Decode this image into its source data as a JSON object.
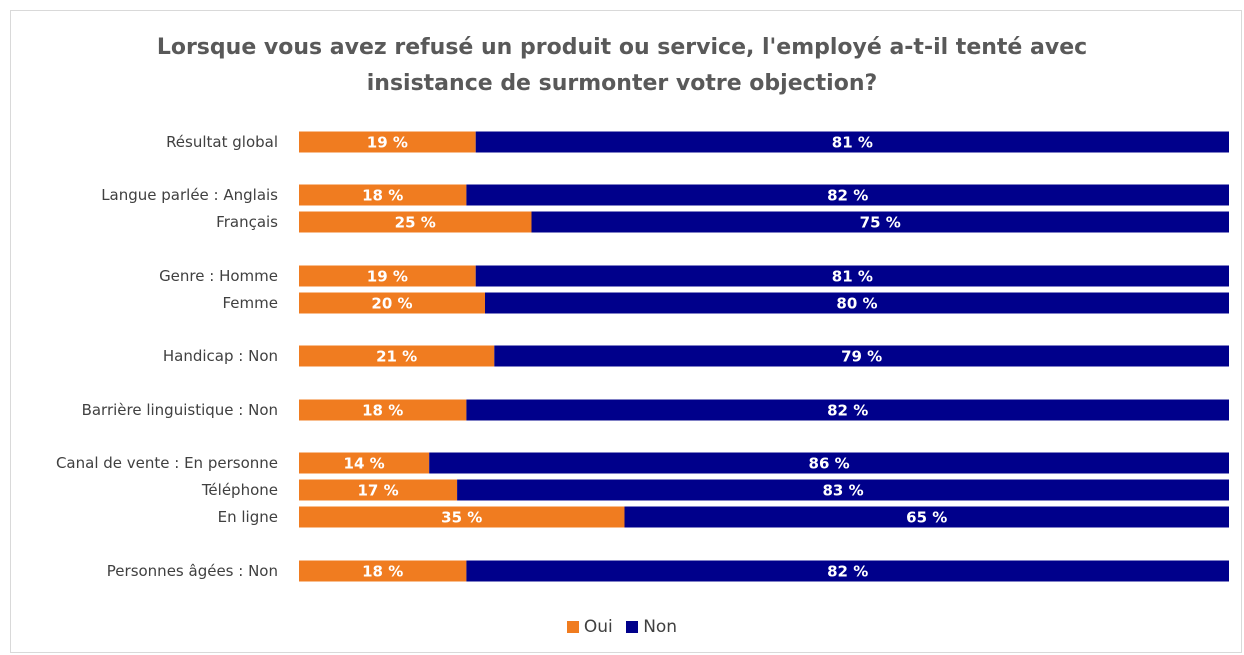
{
  "chart_data": {
    "type": "bar",
    "orientation": "horizontal",
    "stacked": "percent",
    "title_lines": [
      "Lorsque vous avez refusé un produit ou service, l'employé a-t-il tenté avec",
      "insistance de surmonter votre objection?"
    ],
    "categories": [
      "Résultat global",
      "Langue parlée : Anglais",
      "Français",
      "Genre : Homme",
      "Femme",
      "Handicap : Non",
      "Barrière linguistique : Non",
      "Canal de vente : En personne",
      "Téléphone",
      "En ligne",
      "Personnes âgées : Non"
    ],
    "series": [
      {
        "name": "Oui",
        "color": "#f07c20",
        "values": [
          19,
          18,
          25,
          19,
          20,
          21,
          18,
          14,
          17,
          35,
          18
        ],
        "labels": [
          "19 %",
          "18 %",
          "25 %",
          "19 %",
          "20 %",
          "21 %",
          "18 %",
          "14 %",
          "17 %",
          "35 %",
          "18 %"
        ]
      },
      {
        "name": "Non",
        "color": "#00008b",
        "values": [
          81,
          82,
          75,
          81,
          80,
          79,
          82,
          86,
          83,
          65,
          82
        ],
        "labels": [
          "81 %",
          "82 %",
          "75 %",
          "81 %",
          "80 %",
          "79 %",
          "82 %",
          "86 %",
          "83 %",
          "65 %",
          "82 %"
        ]
      }
    ],
    "xlim": [
      0,
      100
    ],
    "grid": false,
    "legend_position": "bottom"
  }
}
